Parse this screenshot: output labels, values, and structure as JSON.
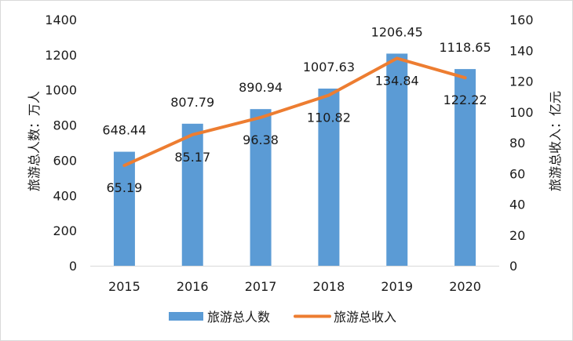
{
  "chart_data": {
    "type": "bar+line",
    "categories": [
      "2015",
      "2016",
      "2017",
      "2018",
      "2019",
      "2020"
    ],
    "series": [
      {
        "name": "旅游总人数",
        "type": "bar",
        "axis": "left",
        "values": [
          648.44,
          807.79,
          890.94,
          1007.63,
          1206.45,
          1118.65
        ],
        "labels": [
          "648.44",
          "807.79",
          "890.94",
          "1007.63",
          "1206.45",
          "1118.65"
        ]
      },
      {
        "name": "旅游总收入",
        "type": "line",
        "axis": "right",
        "values": [
          65.19,
          85.17,
          96.38,
          110.82,
          134.84,
          122.22
        ],
        "labels": [
          "65.19",
          "85.17",
          "96.38",
          "110.82",
          "134.84",
          "122.22"
        ]
      }
    ],
    "ylabel": "旅游总人数：万人",
    "y2label": "旅游总收入：亿元",
    "ylim": [
      0,
      1400
    ],
    "y2lim": [
      0,
      160
    ],
    "yticks": [
      "0",
      "200",
      "400",
      "600",
      "800",
      "1000",
      "1200",
      "1400"
    ],
    "y2ticks": [
      "0",
      "20",
      "40",
      "60",
      "80",
      "100",
      "120",
      "140",
      "160"
    ],
    "grid": false,
    "legend_position": "bottom",
    "colors": {
      "bar": "#5b9bd5",
      "line": "#ed7d31"
    }
  }
}
